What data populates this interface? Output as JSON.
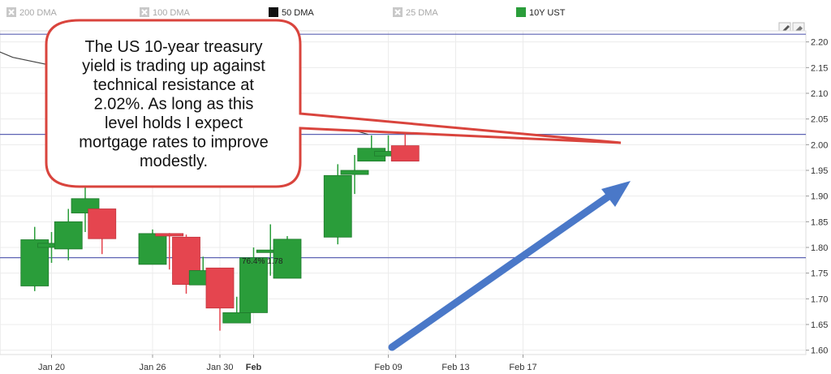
{
  "legend": [
    {
      "label": "200 DMA",
      "enabled": false,
      "color": "#c8c8c8"
    },
    {
      "label": "100 DMA",
      "enabled": false,
      "color": "#c8c8c8"
    },
    {
      "label": "50 DMA",
      "enabled": true,
      "color": "#111111"
    },
    {
      "label": "25 DMA",
      "enabled": false,
      "color": "#c8c8c8"
    },
    {
      "label": "10Y UST",
      "enabled": true,
      "color": "#2a9d3a"
    }
  ],
  "toolbar": {
    "pencil_icon": "pencil-icon",
    "eraser_icon": "eraser-icon"
  },
  "callout": {
    "lines": [
      "The US 10-year treasury",
      "yield is trading up against",
      "technical resistance at",
      "2.02%.  As long as this",
      "level holds I expect",
      "mortgage rates to improve",
      "modestly."
    ]
  },
  "annotation": {
    "text": "76.4% 1.78"
  },
  "colors": {
    "up": "#2a9d3a",
    "down": "#e5454f",
    "hline": "#5d63b4",
    "arrow": "#4a78c8",
    "callout_border": "#d9443d"
  },
  "chart_data": {
    "type": "candlestick",
    "ylim": [
      1.6,
      2.22
    ],
    "yticks": [
      "2.20",
      "2.15",
      "2.10",
      "2.05",
      "2.00",
      "1.95",
      "1.90",
      "1.85",
      "1.80",
      "1.75",
      "1.70",
      "1.65",
      "1.60"
    ],
    "xticks": [
      {
        "label": "Jan 20",
        "bold": false,
        "day": 20
      },
      {
        "label": "Jan 26",
        "bold": false,
        "day": 26
      },
      {
        "label": "Jan 30",
        "bold": false,
        "day": 30
      },
      {
        "label": "Feb",
        "bold": true,
        "day": 32
      },
      {
        "label": "Feb 09",
        "bold": false,
        "day": 40
      },
      {
        "label": "Feb 13",
        "bold": false,
        "day": 44
      },
      {
        "label": "Feb 17",
        "bold": false,
        "day": 48
      }
    ],
    "horizontal_lines": [
      2.215,
      2.02,
      1.78
    ],
    "dma50": [
      {
        "day": 15.5,
        "value": 2.2
      },
      {
        "day": 17.7,
        "value": 2.17
      },
      {
        "day": 36.7,
        "value": 2.04
      },
      {
        "day": 38.8,
        "value": 2.02
      }
    ],
    "candles": [
      {
        "day": 19,
        "open": 1.725,
        "high": 1.84,
        "low": 1.715,
        "close": 1.815
      },
      {
        "day": 20,
        "open": 1.8,
        "high": 1.83,
        "low": 1.77,
        "close": 1.808
      },
      {
        "day": 21,
        "open": 1.797,
        "high": 1.875,
        "low": 1.775,
        "close": 1.85
      },
      {
        "day": 22,
        "open": 1.867,
        "high": 1.935,
        "low": 1.83,
        "close": 1.895
      },
      {
        "day": 23,
        "open": 1.875,
        "high": 1.875,
        "low": 1.787,
        "close": 1.817
      },
      {
        "day": 26,
        "open": 1.767,
        "high": 1.835,
        "low": 1.767,
        "close": 1.827
      },
      {
        "day": 27,
        "open": 1.827,
        "high": 1.828,
        "low": 1.757,
        "close": 1.824
      },
      {
        "day": 28,
        "open": 1.82,
        "high": 1.825,
        "low": 1.71,
        "close": 1.728
      },
      {
        "day": 29,
        "open": 1.727,
        "high": 1.782,
        "low": 1.727,
        "close": 1.755
      },
      {
        "day": 30,
        "open": 1.76,
        "high": 1.76,
        "low": 1.638,
        "close": 1.682
      },
      {
        "day": 31,
        "open": 1.653,
        "high": 1.704,
        "low": 1.653,
        "close": 1.673
      },
      {
        "day": 32,
        "open": 1.673,
        "high": 1.8,
        "low": 1.673,
        "close": 1.78
      },
      {
        "day": 33,
        "open": 1.79,
        "high": 1.845,
        "low": 1.745,
        "close": 1.795
      },
      {
        "day": 34,
        "open": 1.74,
        "high": 1.822,
        "low": 1.74,
        "close": 1.816
      },
      {
        "day": 37,
        "open": 1.82,
        "high": 1.962,
        "low": 1.806,
        "close": 1.94
      },
      {
        "day": 38,
        "open": 1.942,
        "high": 1.98,
        "low": 1.904,
        "close": 1.95
      },
      {
        "day": 39,
        "open": 1.968,
        "high": 2.018,
        "low": 1.968,
        "close": 1.993
      },
      {
        "day": 40,
        "open": 1.978,
        "high": 2.018,
        "low": 1.978,
        "close": 1.987
      },
      {
        "day": 41,
        "open": 1.998,
        "high": 2.04,
        "low": 1.968,
        "close": 1.968
      }
    ]
  }
}
